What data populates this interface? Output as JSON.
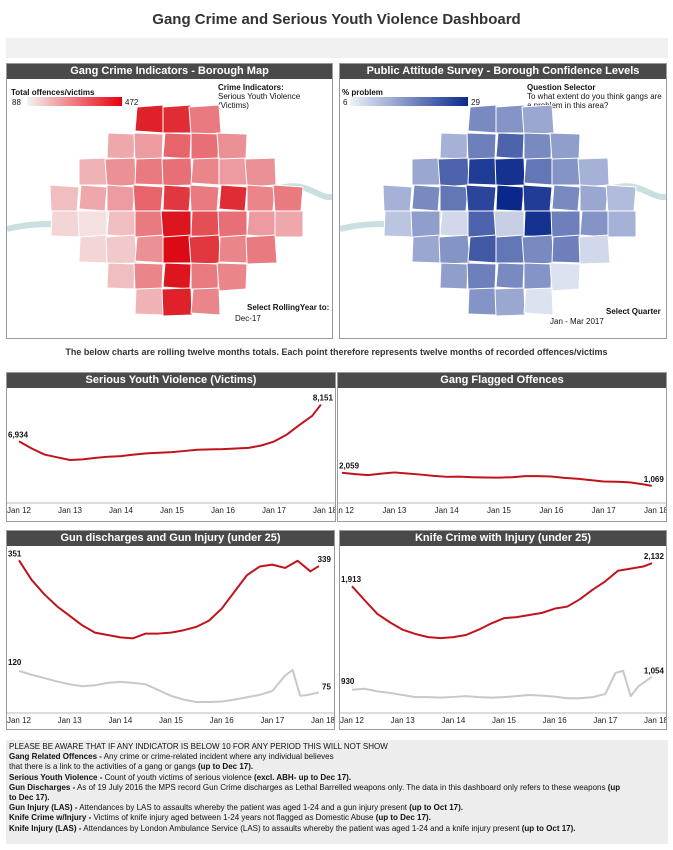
{
  "page": {
    "title": "Gang Crime and Serious Youth Violence Dashboard"
  },
  "colors": {
    "red": "#c0141c",
    "grey": "#c8c8c8",
    "header": "#4a4a4a",
    "blue": "#1f3a9c",
    "river": "#c9dfe0"
  },
  "map_left": {
    "title": "Gang Crime Indicators - Borough Map",
    "legend_title": "Total offences/victims",
    "legend_min": "88",
    "legend_max": "472",
    "indicator_label": "Crime Indicators:",
    "indicator_value": "Serious Youth Violence (Victims)",
    "select_label": "Select RollingYear to:",
    "select_value": "Dec-17"
  },
  "map_right": {
    "title": "Public Attitude Survey - Borough Confidence Levels",
    "legend_title": "% problem",
    "legend_min": "6",
    "legend_max": "29",
    "question_label": "Question Selector",
    "question_value": "To what extent do you think gangs are a problem in this area?",
    "select_label": "Select Quarter",
    "select_value": "Jan - Mar 2017"
  },
  "note": "The below charts are rolling twelve months totals. Each point therefore represents twelve months of recorded offences/victims",
  "chart_data": [
    {
      "id": "syv",
      "type": "line",
      "title": "Serious Youth Violence (Victims)",
      "x_ticks": [
        "Jan 12",
        "Jan 13",
        "Jan 14",
        "Jan 15",
        "Jan 16",
        "Jan 17",
        "Jan 18"
      ],
      "xlim": [
        2012.0,
        2018.0
      ],
      "ylim": [
        5000,
        8500
      ],
      "series": [
        {
          "color": "#c0141c",
          "x": [
            2012.0,
            2012.25,
            2012.5,
            2012.75,
            2013.0,
            2013.25,
            2013.5,
            2013.75,
            2014.0,
            2014.25,
            2014.5,
            2014.75,
            2015.0,
            2015.25,
            2015.5,
            2015.75,
            2016.0,
            2016.25,
            2016.5,
            2016.75,
            2017.0,
            2017.25,
            2017.5,
            2017.75,
            2017.92
          ],
          "y": [
            6934,
            6700,
            6500,
            6410,
            6320,
            6340,
            6390,
            6430,
            6450,
            6500,
            6540,
            6560,
            6580,
            6620,
            6660,
            6670,
            6680,
            6700,
            6720,
            6800,
            6930,
            7160,
            7480,
            7780,
            8151
          ]
        }
      ],
      "annotations": [
        {
          "text": "6,934"
        },
        {
          "text": "8,151"
        }
      ]
    },
    {
      "id": "gang",
      "type": "line",
      "title": "Gang Flagged Offences",
      "x_ticks": [
        "Jan 12",
        "Jan 13",
        "Jan 14",
        "Jan 15",
        "Jan 16",
        "Jan 17",
        "Jan 18"
      ],
      "xlim": [
        2012.0,
        2018.0
      ],
      "ylim": [
        0,
        8000
      ],
      "series": [
        {
          "color": "#c0141c",
          "x": [
            2012.0,
            2012.25,
            2012.5,
            2012.75,
            2013.0,
            2013.25,
            2013.5,
            2013.75,
            2014.0,
            2014.25,
            2014.5,
            2014.75,
            2015.0,
            2015.25,
            2015.5,
            2015.75,
            2016.0,
            2016.25,
            2016.5,
            2016.75,
            2017.0,
            2017.25,
            2017.5,
            2017.75,
            2017.92
          ],
          "y": [
            2059,
            1950,
            1880,
            1990,
            2080,
            2000,
            1920,
            1820,
            1750,
            1760,
            1720,
            1700,
            1690,
            1720,
            1800,
            1800,
            1770,
            1670,
            1600,
            1500,
            1400,
            1380,
            1330,
            1190,
            1069
          ]
        }
      ],
      "annotations": [
        {
          "text": "2,059"
        },
        {
          "text": "1,069"
        }
      ]
    },
    {
      "id": "gun",
      "type": "line",
      "title": "Gun discharges and Gun Injury (under 25)",
      "x_ticks": [
        "Jan 12",
        "Jan 13",
        "Jan 14",
        "Jan 15",
        "Jan 16",
        "Jan 17",
        "Jan 18"
      ],
      "xlim": [
        2012.0,
        2018.0
      ],
      "ylim": [
        30,
        360
      ],
      "series": [
        {
          "color": "#c0141c",
          "x": [
            2012.0,
            2012.25,
            2012.5,
            2012.75,
            2013.0,
            2013.25,
            2013.5,
            2013.75,
            2014.0,
            2014.25,
            2014.5,
            2014.75,
            2015.0,
            2015.25,
            2015.5,
            2015.75,
            2016.0,
            2016.25,
            2016.5,
            2016.75,
            2017.0,
            2017.25,
            2017.5,
            2017.75,
            2017.92
          ],
          "y": [
            351,
            310,
            280,
            255,
            235,
            215,
            200,
            195,
            190,
            188,
            198,
            198,
            200,
            205,
            212,
            225,
            250,
            285,
            320,
            338,
            342,
            335,
            350,
            328,
            339
          ]
        },
        {
          "color": "#c8c8c8",
          "x": [
            2012.0,
            2012.25,
            2012.5,
            2012.75,
            2013.0,
            2013.25,
            2013.5,
            2013.75,
            2014.0,
            2014.25,
            2014.5,
            2014.75,
            2015.0,
            2015.25,
            2015.5,
            2015.75,
            2016.0,
            2016.25,
            2016.5,
            2016.75,
            2017.0,
            2017.25,
            2017.4,
            2017.55,
            2017.7,
            2017.92
          ],
          "y": [
            120,
            112,
            105,
            98,
            92,
            88,
            90,
            95,
            97,
            95,
            92,
            80,
            68,
            60,
            55,
            55,
            56,
            60,
            65,
            70,
            78,
            110,
            122,
            68,
            70,
            75
          ]
        }
      ],
      "annotations": [
        {
          "text": "351"
        },
        {
          "text": "339"
        },
        {
          "text": "120"
        },
        {
          "text": "75"
        }
      ]
    },
    {
      "id": "knife",
      "type": "line",
      "title": "Knife Crime with Injury (under 25)",
      "x_ticks": [
        "Jan 12",
        "Jan 13",
        "Jan 14",
        "Jan 15",
        "Jan 16",
        "Jan 17",
        "Jan 18"
      ],
      "xlim": [
        2012.0,
        2018.0
      ],
      "ylim": [
        700,
        2200
      ],
      "series": [
        {
          "color": "#c0141c",
          "x": [
            2012.0,
            2012.25,
            2012.5,
            2012.75,
            2013.0,
            2013.25,
            2013.5,
            2013.75,
            2014.0,
            2014.25,
            2014.5,
            2014.75,
            2015.0,
            2015.25,
            2015.5,
            2015.75,
            2016.0,
            2016.25,
            2016.5,
            2016.75,
            2017.0,
            2017.25,
            2017.5,
            2017.75,
            2017.92
          ],
          "y": [
            1913,
            1780,
            1650,
            1570,
            1500,
            1460,
            1430,
            1420,
            1430,
            1450,
            1500,
            1560,
            1610,
            1620,
            1640,
            1660,
            1700,
            1720,
            1790,
            1880,
            1960,
            2060,
            2080,
            2100,
            2132
          ]
        },
        {
          "color": "#c8c8c8",
          "x": [
            2012.0,
            2012.25,
            2012.5,
            2012.75,
            2013.0,
            2013.25,
            2013.5,
            2013.75,
            2014.0,
            2014.25,
            2014.5,
            2014.75,
            2015.0,
            2015.25,
            2015.5,
            2015.75,
            2016.0,
            2016.25,
            2016.5,
            2016.75,
            2017.0,
            2017.2,
            2017.35,
            2017.5,
            2017.65,
            2017.92
          ],
          "y": [
            930,
            940,
            915,
            900,
            880,
            860,
            860,
            855,
            862,
            870,
            860,
            855,
            860,
            870,
            880,
            875,
            865,
            850,
            850,
            860,
            890,
            1090,
            1110,
            870,
            960,
            1054
          ]
        }
      ],
      "annotations": [
        {
          "text": "1,913"
        },
        {
          "text": "2,132"
        },
        {
          "text": "930"
        },
        {
          "text": "1,054"
        }
      ]
    }
  ],
  "footer": {
    "warning": "PLEASE BE AWARE THAT IF ANY INDICATOR IS BELOW 10 FOR ANY PERIOD THIS WILL NOT SHOW",
    "items": [
      {
        "term": "Gang Related Offences -",
        "text": " Any crime or crime-related incident where any individual believes"
      },
      {
        "term": "",
        "text": "that there is a link to the activities of a gang or gangs ",
        "tail": "(up to Dec 17)."
      },
      {
        "term": "Serious Youth Violence -",
        "text": " Count of youth victims of serious violence ",
        "tail": "(excl. ABH-  up to Dec 17)."
      },
      {
        "term": "Gun Discharges -",
        "text": " As of 19 July 2016 the MPS record Gun Crime discharges as Lethal Barrelled weapons only. The data in this dashboard only refers to these weapons   ",
        "tail": "(up"
      },
      {
        "term": "",
        "text": "",
        "tail": "to Dec 17)."
      },
      {
        "term": "Gun Injury (LAS) -",
        "text": " Attendances by LAS to assaults whereby the patient was aged 1-24 and a gun injury present ",
        "tail": "(up to Oct 17)."
      },
      {
        "term": "Knife Crime w/Injury -",
        "text": " Victims of knife injury aged between 1-24 years not flagged as Domestic Abuse  ",
        "tail": "(up to Dec 17)."
      },
      {
        "term": "Knife Injury (LAS) -",
        "text": " Attendances by London Ambulance Service (LAS) to assaults whereby the patient was aged 1-24 and a knife injury present ",
        "tail": "(up to Oct 17)."
      }
    ]
  }
}
